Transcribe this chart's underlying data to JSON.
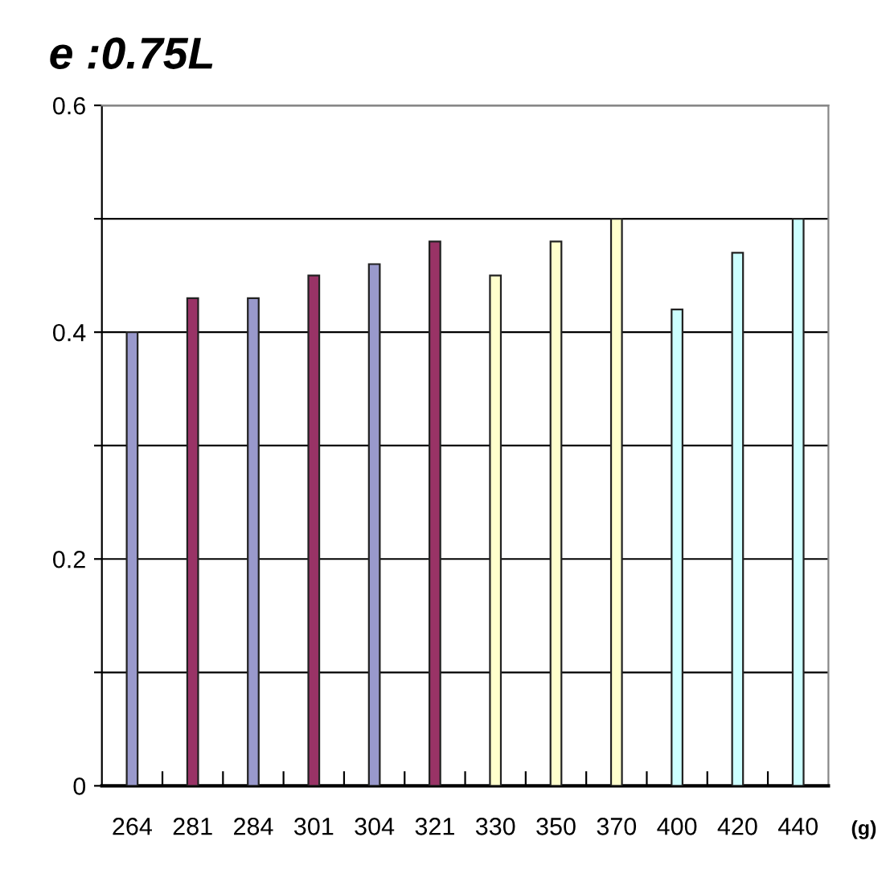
{
  "chart_data": {
    "type": "bar",
    "title": "e :0.75L",
    "xlabel": "(g)",
    "categories": [
      "264",
      "281",
      "284",
      "301",
      "304",
      "321",
      "330",
      "350",
      "370",
      "400",
      "420",
      "440"
    ],
    "values": [
      0.4,
      0.43,
      0.43,
      0.45,
      0.46,
      0.48,
      0.45,
      0.48,
      0.5,
      0.42,
      0.47,
      0.5
    ],
    "colors": [
      "#9999cc",
      "#993366",
      "#9999cc",
      "#993366",
      "#9999cc",
      "#993366",
      "#ffffcc",
      "#ffffcc",
      "#ffffcc",
      "#ccffff",
      "#ccffff",
      "#ccffff"
    ],
    "ylim": [
      0,
      0.6
    ],
    "yticks": [
      0,
      {
        "value": 0.1,
        "label": null
      },
      0.2,
      {
        "value": 0.3,
        "label": null
      },
      0.4,
      {
        "value": 0.5,
        "label": null
      },
      0.6
    ],
    "grid": "y"
  }
}
